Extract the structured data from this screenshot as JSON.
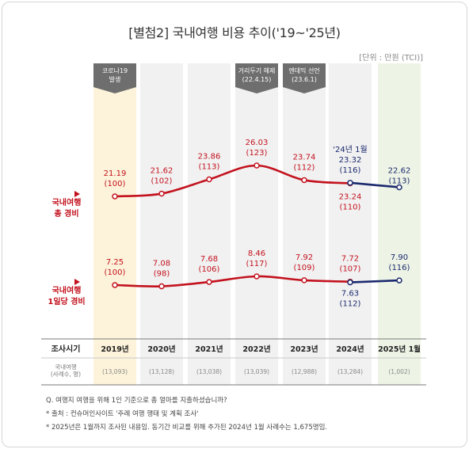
{
  "title": "[별첨2] 국내여행 비용 추이('19~'25년)",
  "unit": "[단위 : 만원 (TCI)]",
  "chart_data": {
    "type": "line",
    "categories": [
      "2019년",
      "2020년",
      "2021년",
      "2022년",
      "2023년",
      "2024년",
      "2025년 1월"
    ],
    "row_header": "조사시기",
    "sample_header": "국내여행\n(사례수, 명)",
    "samples": [
      "(13,093)",
      "(13,128)",
      "(13,038)",
      "(13,039)",
      "(12,988)",
      "(13,284)",
      "(1,002)"
    ],
    "series": [
      {
        "name": "국내여행\n총 경비",
        "values": [
          21.19,
          21.62,
          23.86,
          26.03,
          23.74,
          23.24,
          null
        ],
        "index": [
          "(100)",
          "(102)",
          "(113)",
          "(123)",
          "(112)",
          "(110)",
          null
        ],
        "color": "#c3121e"
      },
      {
        "name": "",
        "values": [
          null,
          null,
          null,
          null,
          null,
          23.32,
          22.62
        ],
        "index": [
          null,
          null,
          null,
          null,
          null,
          "(116)",
          "(113)"
        ],
        "prefix": "'24년 1월",
        "color": "#1b2a6e"
      },
      {
        "name": "국내여행\n1일당 경비",
        "values": [
          7.25,
          7.08,
          7.68,
          8.46,
          7.92,
          7.72,
          null
        ],
        "index": [
          "(100)",
          "(98)",
          "(106)",
          "(117)",
          "(109)",
          "(107)",
          null
        ],
        "color": "#c3121e"
      },
      {
        "name": "",
        "values": [
          null,
          null,
          null,
          null,
          null,
          7.63,
          7.9
        ],
        "index": [
          null,
          null,
          null,
          null,
          null,
          "(112)",
          "(116)"
        ],
        "color": "#1b2a6e"
      }
    ],
    "annotations": [
      {
        "category": "2019년",
        "text": "코로나19\n발생"
      },
      {
        "category": "2022년",
        "text": "거리두기 해제\n(22.4.15)"
      },
      {
        "category": "2023년",
        "text": "엔데믹 선언\n(23.6.1)"
      }
    ],
    "highlight_colors": {
      "2019년": "#fdf3da",
      "2025년 1월": "#edf4e6",
      "default": "#f1f1f1"
    }
  },
  "notes": [
    "Q. 여행지 여행을 위해 1인 기준으로 총 얼마를 지출하셨습니까?",
    "* 출처 : 컨슈머인사이트 '주례 여행 행태 및 계획 조사'",
    "* 2025년은 1월까지 조사된 내용임. 동기간 비교를 위해 추가된 2024년 1월 사례수는 1,675명임."
  ]
}
